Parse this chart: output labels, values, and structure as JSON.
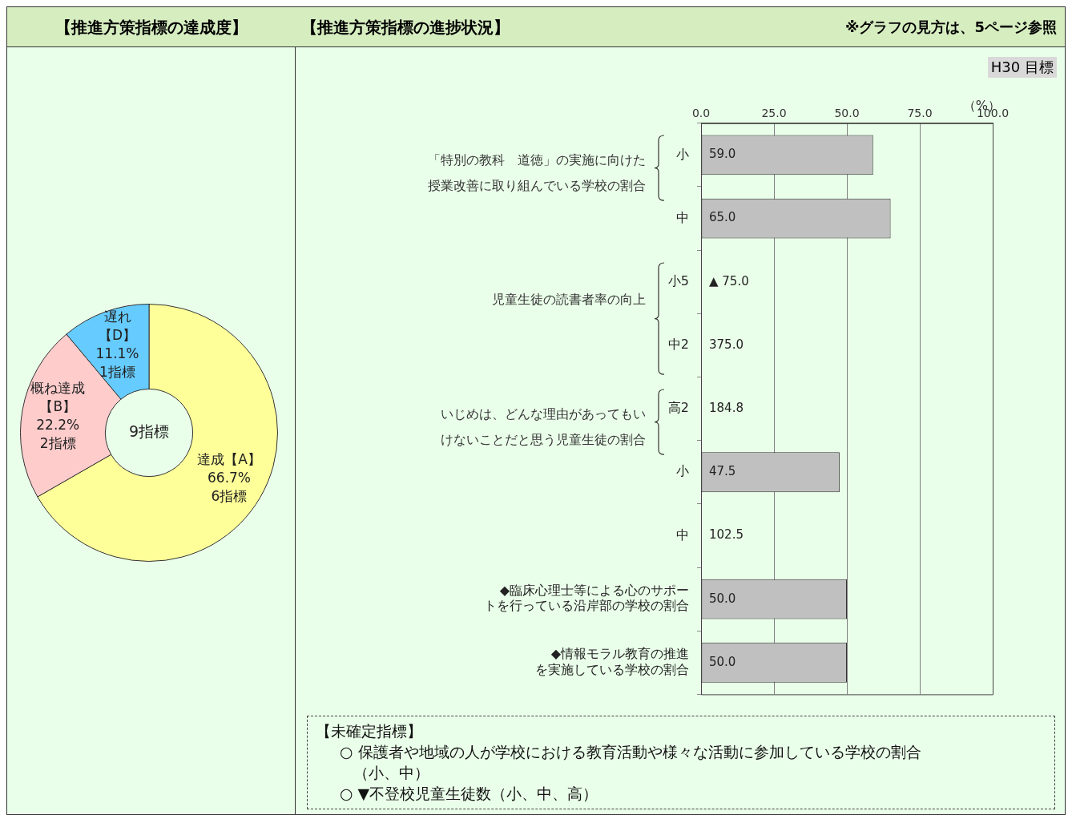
{
  "chart_data": [
    {
      "type": "donut",
      "title": "【推進方策指標の達成度】",
      "categories": [
        "達成【A】",
        "概ね達成【B】",
        "遅れ【D】"
      ],
      "values": [
        66.7,
        22.2,
        11.1
      ],
      "colors": [
        "#ffff99",
        "#ffcccc",
        "#66ccff"
      ],
      "value_labels": [
        "66.7%\n6指標",
        "22.2%\n2指標",
        "11.1%\n1指標"
      ],
      "legend": false,
      "annotations": [
        "9指標"
      ]
    },
    {
      "type": "bar",
      "orientation": "horizontal",
      "title": "【推進方策指標の進捗状況】",
      "subtitle": "H30 目標",
      "xlabel": "（%）",
      "categories": [
        "小",
        "中",
        "小5",
        "中2",
        "高2",
        "小",
        "中",
        "◆臨床心理士等による心のサポートを行っている沿岸部の学校の割合",
        "◆情報モラル教育の推進を実施している学校の割合"
      ],
      "values": [
        59.0,
        65.0,
        null,
        null,
        null,
        47.5,
        null,
        50.0,
        50.0
      ],
      "color": "#c0c0c0",
      "value_labels": [
        "59.0",
        "65.0",
        "▲ 75.0",
        "375.0",
        "184.8",
        "47.5",
        "102.5",
        "50.0",
        "50.0"
      ],
      "xlim": [
        0,
        100
      ],
      "xticks": [
        {
          "value": 0,
          "label": "0.0"
        },
        {
          "value": 25,
          "label": "25.0"
        },
        {
          "value": 50,
          "label": "50.0"
        },
        {
          "value": 75,
          "label": "75.0"
        },
        {
          "value": 100,
          "label": "100.0"
        }
      ],
      "grid": "x",
      "legend": false,
      "annotations": [
        "「特別の教科　道徳」の実施に向けた授業改善に取り組んでいる学校の割合",
        "児童生徒の読書者率の向上",
        "いじめは、どんな理由があってもいけないことだと思う児童生徒の割合",
        "※グラフの見方は、5ページ参照",
        "【未確定指標】",
        "○ 保護者や地域の人が学校における教育活動や様々な活動に参加している学校の割合（小、中）",
        "○ ▼不登校児童生徒数（小、中、高）"
      ]
    }
  ]
}
